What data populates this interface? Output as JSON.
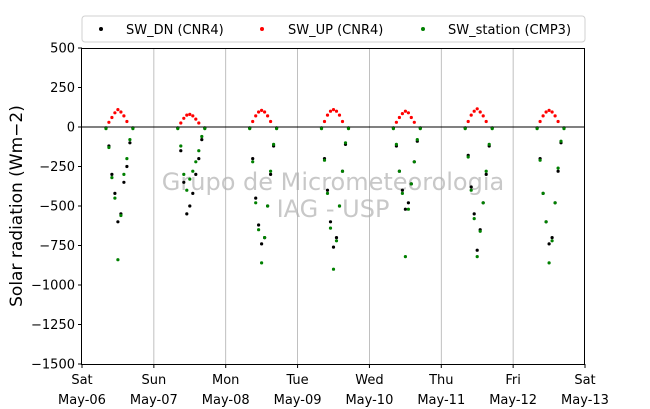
{
  "chart_data": {
    "type": "scatter",
    "ylabel": "Solar radiation ($Wm{-}2$)",
    "ylabel_display": "Solar radiation (Wm−2)",
    "ylim": [
      -1500,
      500
    ],
    "yticks": [
      500,
      250,
      0,
      -250,
      -500,
      -750,
      -1000,
      -1250,
      -1500
    ],
    "ytick_labels": [
      "500",
      "250",
      "0",
      "−250",
      "−500",
      "−750",
      "−1000",
      "−1250",
      "−1500"
    ],
    "xlim": [
      "2023-05-06",
      "2023-05-13"
    ],
    "xticks": [
      {
        "day": "Sat",
        "date": "May-06"
      },
      {
        "day": "Sun",
        "date": "May-07"
      },
      {
        "day": "Mon",
        "date": "May-08"
      },
      {
        "day": "Tue",
        "date": "May-09"
      },
      {
        "day": "Wed",
        "date": "May-10"
      },
      {
        "day": "Thu",
        "date": "May-11"
      },
      {
        "day": "Fri",
        "date": "May-12"
      },
      {
        "day": "Sat",
        "date": "May-13"
      }
    ],
    "grid": "vertical",
    "legend_position": "top",
    "watermark": [
      "Grupo de Micrometeorologia",
      "IAG - USP"
    ],
    "colors": {
      "sw_dn": "#000000",
      "sw_up": "#ff0000",
      "sw_station": "#008000"
    },
    "series": [
      {
        "name": "SW_DN (CNR4)",
        "color": "#000000",
        "marker": "dot",
        "x": [
          "05-06 08:00",
          "05-06 09:00",
          "05-06 10:00",
          "05-06 11:00",
          "05-06 12:00",
          "05-06 13:00",
          "05-06 14:00",
          "05-06 15:00",
          "05-06 16:00",
          "05-06 17:00",
          "05-07 08:00",
          "05-07 09:00",
          "05-07 10:00",
          "05-07 11:00",
          "05-07 12:00",
          "05-07 13:00",
          "05-07 14:00",
          "05-07 15:00",
          "05-07 16:00",
          "05-07 17:00",
          "05-08 08:00",
          "05-08 09:00",
          "05-08 10:00",
          "05-08 11:00",
          "05-08 12:00",
          "05-08 13:00",
          "05-08 14:00",
          "05-08 15:00",
          "05-08 16:00",
          "05-08 17:00",
          "05-09 08:00",
          "05-09 09:00",
          "05-09 10:00",
          "05-09 11:00",
          "05-09 12:00",
          "05-09 13:00",
          "05-09 14:00",
          "05-09 15:00",
          "05-09 16:00",
          "05-09 17:00",
          "05-10 08:00",
          "05-10 09:00",
          "05-10 10:00",
          "05-10 11:00",
          "05-10 12:00",
          "05-10 13:00",
          "05-10 14:00",
          "05-10 15:00",
          "05-10 16:00",
          "05-10 17:00",
          "05-11 08:00",
          "05-11 09:00",
          "05-11 10:00",
          "05-11 11:00",
          "05-11 12:00",
          "05-11 13:00",
          "05-11 14:00",
          "05-11 15:00",
          "05-11 16:00",
          "05-11 17:00",
          "05-12 08:00",
          "05-12 09:00",
          "05-12 10:00",
          "05-12 11:00",
          "05-12 12:00",
          "05-12 13:00",
          "05-12 14:00",
          "05-12 15:00",
          "05-12 16:00",
          "05-12 17:00"
        ],
        "y": [
          -5,
          -120,
          -300,
          -420,
          -600,
          -550,
          -350,
          -250,
          -100,
          -5,
          -5,
          -150,
          -350,
          -550,
          -500,
          -420,
          -300,
          -200,
          -80,
          -5,
          -5,
          -200,
          -450,
          -620,
          -740,
          -700,
          -500,
          -300,
          -120,
          -5,
          -5,
          -200,
          -400,
          -600,
          -760,
          -700,
          -500,
          -280,
          -110,
          -5,
          -5,
          -120,
          -280,
          -400,
          -520,
          -480,
          -360,
          -220,
          -90,
          -5,
          -5,
          -180,
          -380,
          -550,
          -780,
          -650,
          -480,
          -300,
          -120,
          -5,
          -5,
          -200,
          -420,
          -600,
          -740,
          -700,
          -480,
          -280,
          -100,
          -5
        ]
      },
      {
        "name": "SW_UP (CNR4)",
        "color": "#ff0000",
        "marker": "dot",
        "x": [
          "05-06 09:00",
          "05-06 10:00",
          "05-06 11:00",
          "05-06 12:00",
          "05-06 13:00",
          "05-06 14:00",
          "05-06 15:00",
          "05-07 09:00",
          "05-07 10:00",
          "05-07 11:00",
          "05-07 12:00",
          "05-07 13:00",
          "05-07 14:00",
          "05-07 15:00",
          "05-08 09:00",
          "05-08 10:00",
          "05-08 11:00",
          "05-08 12:00",
          "05-08 13:00",
          "05-08 14:00",
          "05-08 15:00",
          "05-09 09:00",
          "05-09 10:00",
          "05-09 11:00",
          "05-09 12:00",
          "05-09 13:00",
          "05-09 14:00",
          "05-09 15:00",
          "05-10 09:00",
          "05-10 10:00",
          "05-10 11:00",
          "05-10 12:00",
          "05-10 13:00",
          "05-10 14:00",
          "05-10 15:00",
          "05-11 09:00",
          "05-11 10:00",
          "05-11 11:00",
          "05-11 12:00",
          "05-11 13:00",
          "05-11 14:00",
          "05-11 15:00",
          "05-12 09:00",
          "05-12 10:00",
          "05-12 11:00",
          "05-12 12:00",
          "05-12 13:00",
          "05-12 14:00",
          "05-12 15:00"
        ],
        "y": [
          30,
          60,
          90,
          110,
          95,
          70,
          35,
          25,
          55,
          75,
          80,
          70,
          50,
          25,
          35,
          70,
          95,
          105,
          95,
          70,
          35,
          35,
          75,
          100,
          110,
          100,
          75,
          35,
          30,
          60,
          85,
          100,
          90,
          60,
          30,
          35,
          75,
          100,
          115,
          95,
          70,
          35,
          35,
          70,
          95,
          105,
          95,
          70,
          35
        ]
      },
      {
        "name": "SW_station (CMP3)",
        "color": "#008000",
        "marker": "dot",
        "x": [
          "05-06 08:00",
          "05-06 09:00",
          "05-06 10:00",
          "05-06 11:00",
          "05-06 12:00",
          "05-06 13:00",
          "05-06 14:00",
          "05-06 15:00",
          "05-06 16:00",
          "05-06 17:00",
          "05-07 08:00",
          "05-07 09:00",
          "05-07 10:00",
          "05-07 11:00",
          "05-07 12:00",
          "05-07 13:00",
          "05-07 14:00",
          "05-07 15:00",
          "05-07 16:00",
          "05-07 17:00",
          "05-08 08:00",
          "05-08 09:00",
          "05-08 10:00",
          "05-08 11:00",
          "05-08 12:00",
          "05-08 13:00",
          "05-08 14:00",
          "05-08 15:00",
          "05-08 16:00",
          "05-08 17:00",
          "05-09 08:00",
          "05-09 09:00",
          "05-09 10:00",
          "05-09 11:00",
          "05-09 12:00",
          "05-09 13:00",
          "05-09 14:00",
          "05-09 15:00",
          "05-09 16:00",
          "05-09 17:00",
          "05-10 08:00",
          "05-10 09:00",
          "05-10 10:00",
          "05-10 11:00",
          "05-10 12:00",
          "05-10 13:00",
          "05-10 14:00",
          "05-10 15:00",
          "05-10 16:00",
          "05-10 17:00",
          "05-11 08:00",
          "05-11 09:00",
          "05-11 10:00",
          "05-11 11:00",
          "05-11 12:00",
          "05-11 13:00",
          "05-11 14:00",
          "05-11 15:00",
          "05-11 16:00",
          "05-11 17:00",
          "05-12 08:00",
          "05-12 09:00",
          "05-12 10:00",
          "05-12 11:00",
          "05-12 12:00",
          "05-12 13:00",
          "05-12 14:00",
          "05-12 15:00",
          "05-12 16:00",
          "05-12 17:00"
        ],
        "y": [
          -10,
          -130,
          -320,
          -450,
          -840,
          -560,
          -300,
          -200,
          -80,
          -10,
          -10,
          -120,
          -300,
          -400,
          -330,
          -280,
          -220,
          -150,
          -60,
          -10,
          -10,
          -220,
          -480,
          -650,
          -860,
          -700,
          -500,
          -280,
          -110,
          -10,
          -10,
          -210,
          -420,
          -640,
          -900,
          -720,
          -500,
          -280,
          -100,
          -10,
          -10,
          -110,
          -280,
          -420,
          -820,
          -520,
          -360,
          -220,
          -80,
          -10,
          -10,
          -190,
          -400,
          -580,
          -820,
          -660,
          -480,
          -280,
          -110,
          -10,
          -10,
          -210,
          -420,
          -600,
          -860,
          -720,
          -480,
          -260,
          -90,
          -10
        ]
      }
    ]
  }
}
